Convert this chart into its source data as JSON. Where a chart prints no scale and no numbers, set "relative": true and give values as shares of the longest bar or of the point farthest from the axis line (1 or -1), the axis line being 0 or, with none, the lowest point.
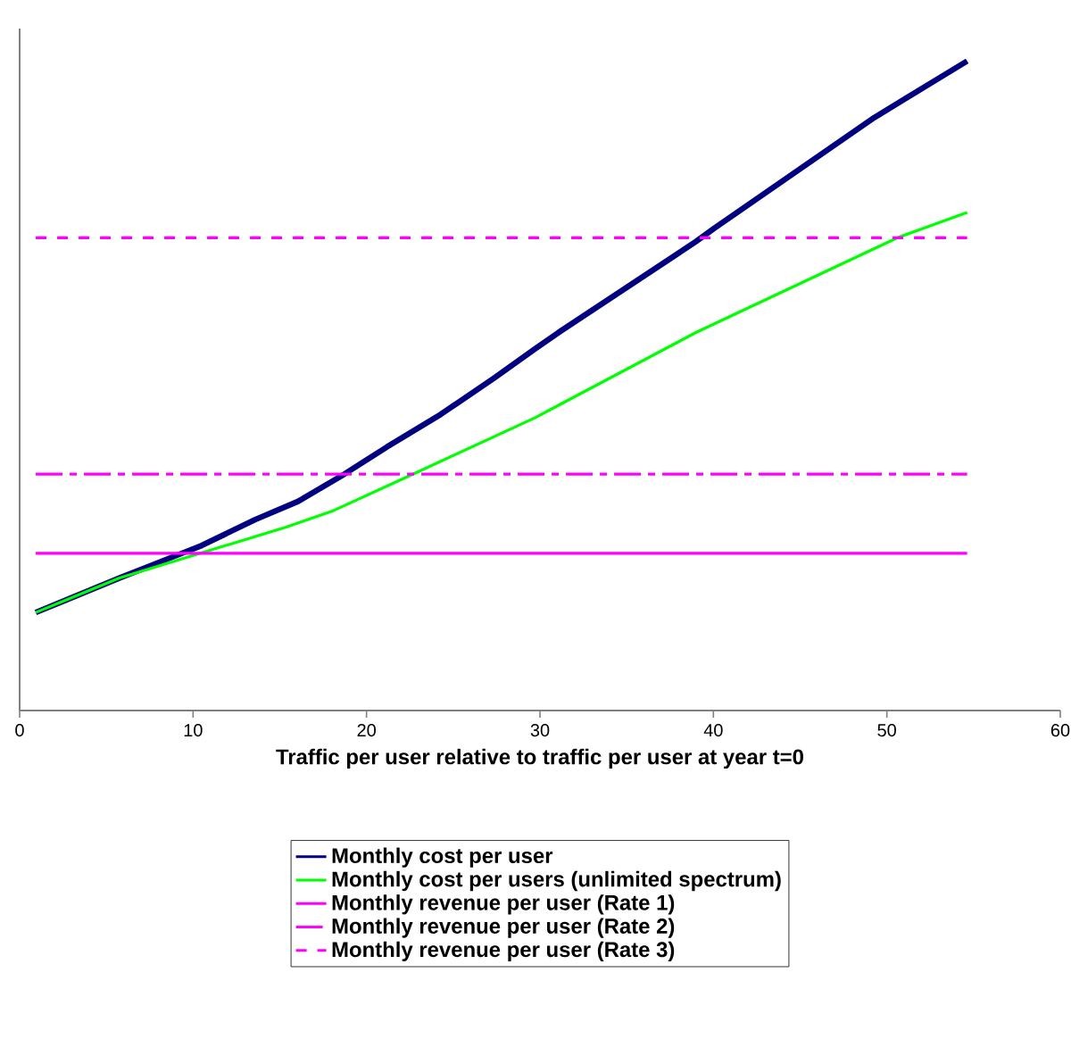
{
  "chart_data": {
    "type": "line",
    "xlabel": "Traffic per user relative to traffic per user at year t=0",
    "relative": true,
    "xlim": [
      0,
      60
    ],
    "xticks": [
      0,
      10,
      20,
      30,
      40,
      50,
      60
    ],
    "tick_labels": "x",
    "legend": "bottom",
    "grid": false,
    "marker": "none",
    "series": [
      {
        "name": "Monthly cost per user",
        "color": "#000080",
        "line_style": "solid",
        "x": [
          0.93,
          2.67,
          5.76,
          9.16,
          10.49,
          13.58,
          16.05,
          18.72,
          21.19,
          24.28,
          27.37,
          29.73,
          31.07,
          38.99,
          40.02,
          49.28,
          54.63
        ],
        "values": [
          0.151,
          0.17,
          0.204,
          0.24,
          0.254,
          0.294,
          0.322,
          0.364,
          0.406,
          0.456,
          0.512,
          0.557,
          0.582,
          0.722,
          0.742,
          0.913,
          1
        ]
      },
      {
        "name": "Monthly cost per users (unlimited spectrum)",
        "color": "#00ff00",
        "line_style": "solid",
        "x": [
          0.93,
          2.67,
          5.76,
          9.16,
          15.33,
          18.11,
          22.84,
          29.73,
          31.07,
          38.99,
          50.62,
          54.63
        ],
        "values": [
          0.151,
          0.17,
          0.204,
          0.232,
          0.282,
          0.308,
          0.366,
          0.451,
          0.47,
          0.582,
          0.728,
          0.767
        ]
      },
      {
        "name": "Monthly revenue per user (Rate 1)",
        "color": "#ff00ff",
        "line_style": "solid",
        "x": [
          0.93,
          54.63
        ],
        "values": [
          0.242,
          0.242
        ]
      },
      {
        "name": "Monthly revenue per user (Rate 2)",
        "color": "#ff00ff",
        "line_style": "dashed",
        "x": [
          0.93,
          54.63
        ],
        "values": [
          0.364,
          0.364
        ]
      },
      {
        "name": "Monthly revenue per user (Rate 3)",
        "color": "#ff00ff",
        "line_style": "dotted",
        "x": [
          0.93,
          54.63
        ],
        "values": [
          0.728,
          0.728
        ]
      }
    ]
  }
}
